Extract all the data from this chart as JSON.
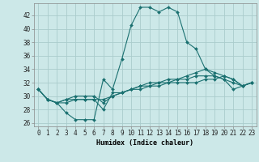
{
  "xlabel": "Humidex (Indice chaleur)",
  "background_color": "#cce8e8",
  "grid_color": "#aacccc",
  "line_color": "#1a7070",
  "xlim": [
    -0.5,
    23.5
  ],
  "ylim": [
    25.5,
    43.8
  ],
  "yticks": [
    26,
    28,
    30,
    32,
    34,
    36,
    38,
    40,
    42
  ],
  "xticks": [
    0,
    1,
    2,
    3,
    4,
    5,
    6,
    7,
    8,
    9,
    10,
    11,
    12,
    13,
    14,
    15,
    16,
    17,
    18,
    19,
    20,
    21,
    22,
    23
  ],
  "series": [
    [
      31.0,
      29.5,
      29.0,
      27.5,
      26.5,
      26.5,
      26.5,
      32.5,
      31.0,
      35.5,
      40.5,
      43.2,
      43.2,
      42.5,
      43.2,
      42.5,
      38.0,
      37.0,
      34.0,
      33.0,
      32.5,
      31.0,
      31.5,
      32.0
    ],
    [
      31.0,
      29.5,
      29.0,
      29.0,
      29.5,
      29.5,
      29.5,
      28.0,
      30.5,
      30.5,
      31.0,
      31.5,
      32.0,
      32.0,
      32.5,
      32.5,
      33.0,
      33.5,
      34.0,
      33.5,
      33.0,
      32.5,
      31.5,
      32.0
    ],
    [
      31.0,
      29.5,
      29.0,
      29.5,
      30.0,
      30.0,
      30.0,
      29.0,
      30.0,
      30.5,
      31.0,
      31.0,
      31.5,
      31.5,
      32.0,
      32.5,
      32.5,
      33.0,
      33.0,
      33.0,
      32.5,
      32.0,
      31.5,
      32.0
    ],
    [
      31.0,
      29.5,
      29.0,
      29.5,
      29.5,
      29.5,
      29.5,
      29.5,
      30.0,
      30.5,
      31.0,
      31.5,
      31.5,
      32.0,
      32.0,
      32.0,
      32.0,
      32.0,
      32.5,
      32.5,
      33.0,
      32.5,
      31.5,
      32.0
    ]
  ],
  "tick_fontsize": 5.5,
  "xlabel_fontsize": 6.0
}
